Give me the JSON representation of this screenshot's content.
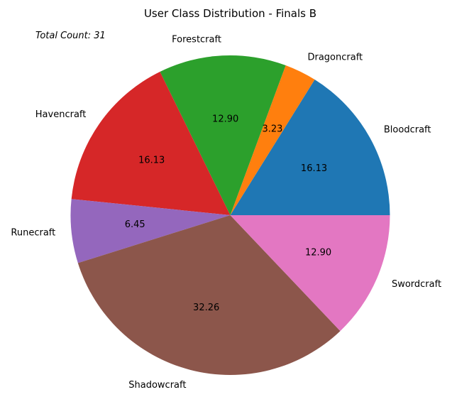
{
  "chart_data": {
    "type": "pie",
    "title": "User Class Distribution - Finals B",
    "annotation": "Total Count: 31",
    "categories": [
      "Bloodcraft",
      "Dragoncraft",
      "Forestcraft",
      "Havencraft",
      "Runecraft",
      "Shadowcraft",
      "Swordcraft"
    ],
    "values": [
      5,
      1,
      4,
      5,
      2,
      10,
      4
    ],
    "percent_labels": [
      "16.13",
      "3.23",
      "12.90",
      "16.13",
      "6.45",
      "32.26",
      "12.90"
    ],
    "colors": [
      "#1f77b4",
      "#ff7f0e",
      "#2ca02c",
      "#d62728",
      "#9467bd",
      "#8c564b",
      "#e377c2"
    ],
    "start_angle_deg": 0,
    "direction": "counterclockwise"
  }
}
